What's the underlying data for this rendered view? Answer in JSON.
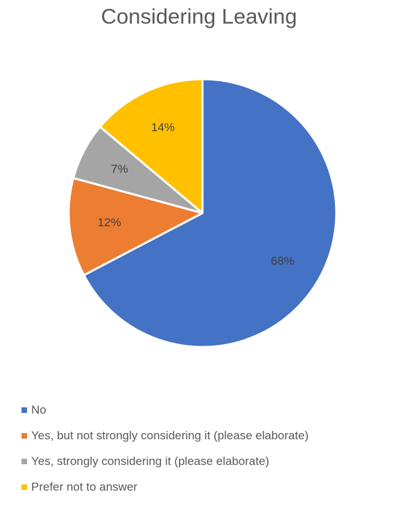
{
  "chart_data": {
    "type": "pie",
    "title": "Considering Leaving",
    "legend_position": "bottom",
    "slices": [
      {
        "name": "No",
        "value": 68,
        "label": "68%",
        "color": "#4472C4"
      },
      {
        "name": "Yes, but not strongly considering it (please elaborate)",
        "value": 12,
        "label": "12%",
        "color": "#ED7D31"
      },
      {
        "name": "Yes, strongly considering it (please elaborate)",
        "value": 7,
        "label": "7%",
        "color": "#A5A5A5"
      },
      {
        "name": "Prefer not to answer",
        "value": 14,
        "label": "14%",
        "color": "#FFC000"
      }
    ]
  }
}
